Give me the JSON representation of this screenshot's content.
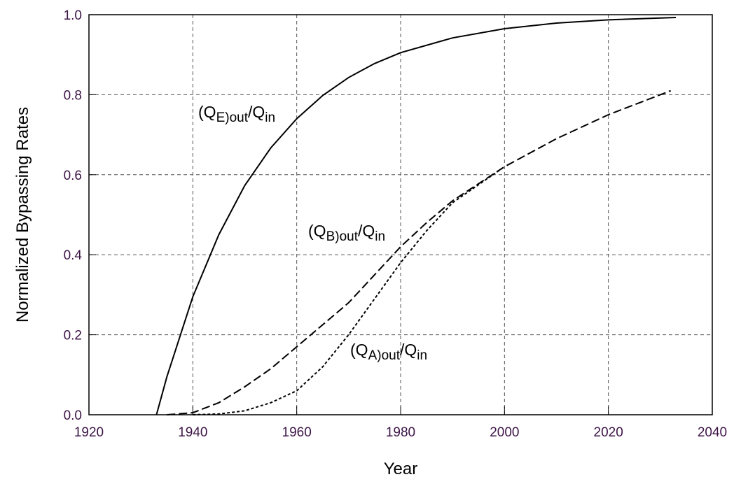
{
  "chart_data": {
    "type": "line",
    "xlabel": "Year",
    "ylabel": "Normalized Bypassing Rates",
    "xlim": [
      1920,
      2040
    ],
    "xticks": [
      1920,
      1940,
      1960,
      1980,
      2000,
      2020,
      2040
    ],
    "ylim": [
      0,
      1
    ],
    "yticks": [
      {
        "value": 0,
        "label": "0.0"
      },
      0.2,
      0.4,
      0.6,
      0.8,
      {
        "value": 1,
        "label": "1.0"
      }
    ],
    "grid": true,
    "series": [
      {
        "name": [
          "(Q",
          "E)out",
          "/Q",
          "in"
        ],
        "color": "#000000",
        "dash": "solid",
        "x": [
          1933,
          1935,
          1940,
          1945,
          1950,
          1955,
          1960,
          1965,
          1970,
          1975,
          1980,
          1990,
          2000,
          2010,
          2020,
          2033
        ],
        "values": [
          0,
          0.095,
          0.295,
          0.45,
          0.573,
          0.667,
          0.74,
          0.798,
          0.843,
          0.878,
          0.905,
          0.942,
          0.965,
          0.979,
          0.987,
          0.993
        ]
      },
      {
        "name": [
          "(Q",
          "B)out",
          "/Q",
          "in"
        ],
        "color": "#000000",
        "dash": "dashed",
        "x": [
          1935,
          1940,
          1945,
          1950,
          1955,
          1960,
          1965,
          1970,
          1975,
          1980,
          1985,
          1990,
          2000,
          2010,
          2020,
          2032
        ],
        "values": [
          0,
          0.005,
          0.03,
          0.07,
          0.115,
          0.17,
          0.225,
          0.28,
          0.35,
          0.42,
          0.48,
          0.535,
          0.62,
          0.69,
          0.75,
          0.81
        ]
      },
      {
        "name": [
          "(Q",
          "A)out",
          "/Q",
          "in"
        ],
        "color": "#000000",
        "dash": "dotted",
        "x": [
          1940,
          1945,
          1950,
          1955,
          1960,
          1965,
          1970,
          1975,
          1980,
          1985,
          1990,
          2000
        ],
        "values": [
          0,
          0.002,
          0.01,
          0.03,
          0.06,
          0.12,
          0.2,
          0.29,
          0.38,
          0.46,
          0.53,
          0.62
        ]
      }
    ]
  }
}
